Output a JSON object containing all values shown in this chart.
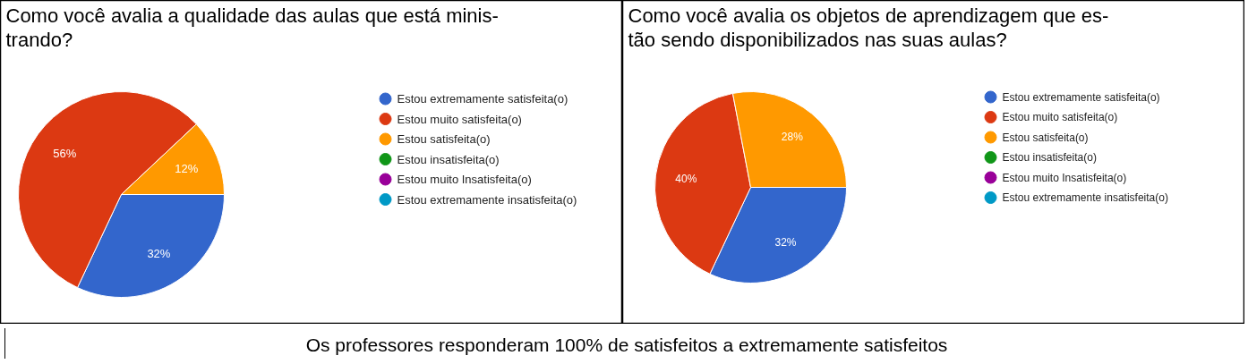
{
  "chart_data": [
    {
      "type": "pie",
      "title": "Como você avalia a qualidade das aulas que está minis-\ntrando?",
      "categories": [
        "Estou extremamente satisfeita(o)",
        "Estou muito satisfeita(o)",
        "Estou satisfeita(o)",
        "Estou insatisfeita(o)",
        "Estou muito Insatisfeita(o)",
        "Estou extremamente insatisfeita(o)"
      ],
      "values": [
        32,
        56,
        12,
        0,
        0,
        0
      ],
      "value_labels": [
        "32%",
        "56%",
        "12%",
        null,
        null,
        null
      ],
      "colors": [
        "#3366cc",
        "#dc3912",
        "#ff9900",
        "#109618",
        "#990099",
        "#0099c6"
      ],
      "legend": "right",
      "annotations": [
        "Os professores responderam 100% de satisfeitos a extremamente satisfeitos"
      ]
    },
    {
      "type": "pie",
      "title": "Como você avalia os objetos de aprendizagem que es-\ntão sendo disponibilizados nas suas aulas?",
      "categories": [
        "Estou extremamente satisfeita(o)",
        "Estou muito satisfeita(o)",
        "Estou satisfeita(o)",
        "Estou insatisfeita(o)",
        "Estou muito Insatisfeita(o)",
        "Estou extremamente insatisfeita(o)"
      ],
      "values": [
        32,
        40,
        28,
        0,
        0,
        0
      ],
      "value_labels": [
        "32%",
        "40%",
        "28%",
        null,
        null,
        null
      ],
      "colors": [
        "#3366cc",
        "#dc3912",
        "#ff9900",
        "#109618",
        "#990099",
        "#0099c6"
      ],
      "legend": "right"
    }
  ]
}
